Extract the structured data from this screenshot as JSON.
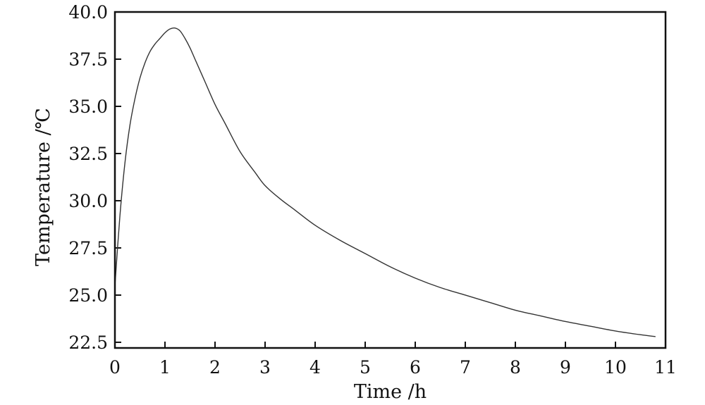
{
  "chart_data": {
    "type": "line",
    "title": "",
    "xlabel": "Time /h",
    "ylabel": "Temperature /℃",
    "xlim": [
      0,
      11
    ],
    "ylim": [
      22.2,
      40.0
    ],
    "grid": false,
    "legend": "none",
    "x_ticks": [
      0,
      1,
      2,
      3,
      4,
      5,
      6,
      7,
      8,
      9,
      10,
      11
    ],
    "x_tick_labels": [
      "0",
      "1",
      "2",
      "3",
      "4",
      "5",
      "6",
      "7",
      "8",
      "9",
      "10",
      "11"
    ],
    "y_ticks": [
      22.5,
      25.0,
      27.5,
      30.0,
      32.5,
      35.0,
      37.5,
      40.0
    ],
    "y_tick_labels": [
      "22.5",
      "25.0",
      "27.5",
      "30.0",
      "32.5",
      "35.0",
      "37.5",
      "40.0"
    ],
    "line_color": "#333333",
    "series": [
      {
        "x": [
          0,
          0.1,
          0.2,
          0.3,
          0.4,
          0.5,
          0.6,
          0.7,
          0.8,
          0.9,
          1.0,
          1.1,
          1.2,
          1.3,
          1.4,
          1.5,
          1.6,
          1.8,
          2.0,
          2.2,
          2.5,
          2.8,
          3.0,
          3.3,
          3.6,
          4.0,
          4.5,
          5.0,
          5.5,
          6.0,
          6.5,
          7.0,
          7.5,
          8.0,
          8.5,
          9.0,
          9.5,
          10.0,
          10.5,
          10.8
        ],
        "y": [
          25.5,
          29.2,
          32.0,
          34.0,
          35.4,
          36.5,
          37.3,
          37.9,
          38.3,
          38.6,
          38.9,
          39.1,
          39.15,
          39.0,
          38.6,
          38.1,
          37.5,
          36.3,
          35.1,
          34.1,
          32.6,
          31.5,
          30.8,
          30.1,
          29.5,
          28.7,
          27.9,
          27.2,
          26.5,
          25.9,
          25.4,
          25.0,
          24.6,
          24.2,
          23.9,
          23.6,
          23.35,
          23.1,
          22.9,
          22.8
        ]
      }
    ]
  }
}
